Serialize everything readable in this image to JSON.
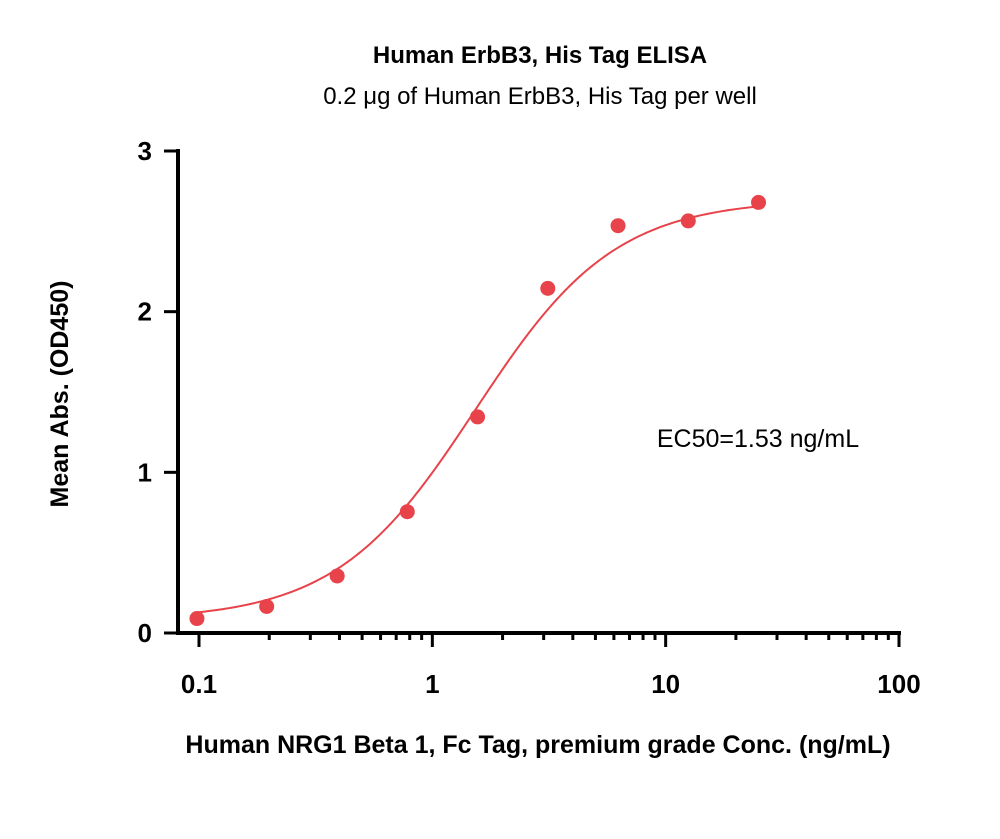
{
  "chart_data": {
    "type": "scatter",
    "title": "Human ErbB3, His Tag ELISA",
    "subtitle": "0.2 μg of Human ErbB3, His Tag per well",
    "xlabel": "Human NRG1 Beta 1, Fc Tag, premium grade Conc. (ng/mL)",
    "ylabel": "Mean Abs. (OD450)",
    "x_scale": "log",
    "xlim": [
      0.1,
      100
    ],
    "ylim": [
      0,
      3
    ],
    "x_ticks": [
      0.1,
      1,
      10,
      100
    ],
    "x_tick_labels": [
      "0.1",
      "1",
      "10",
      "100"
    ],
    "y_ticks": [
      0,
      1,
      2,
      3
    ],
    "y_tick_labels": [
      "0",
      "1",
      "2",
      "3"
    ],
    "grid": false,
    "annotation": "EC50=1.53 ng/mL",
    "color": "#e8434a",
    "series": [
      {
        "x": [
          0.098,
          0.195,
          0.391,
          0.781,
          1.5625,
          3.125,
          6.25,
          12.5,
          25
        ],
        "y": [
          0.09,
          0.165,
          0.355,
          0.755,
          1.345,
          2.145,
          2.535,
          2.565,
          2.68
        ]
      }
    ],
    "fit_curve": {
      "type": "4PL",
      "bottom": 0.08,
      "top": 2.7,
      "ec50": 1.53,
      "hill": 1.45
    }
  }
}
